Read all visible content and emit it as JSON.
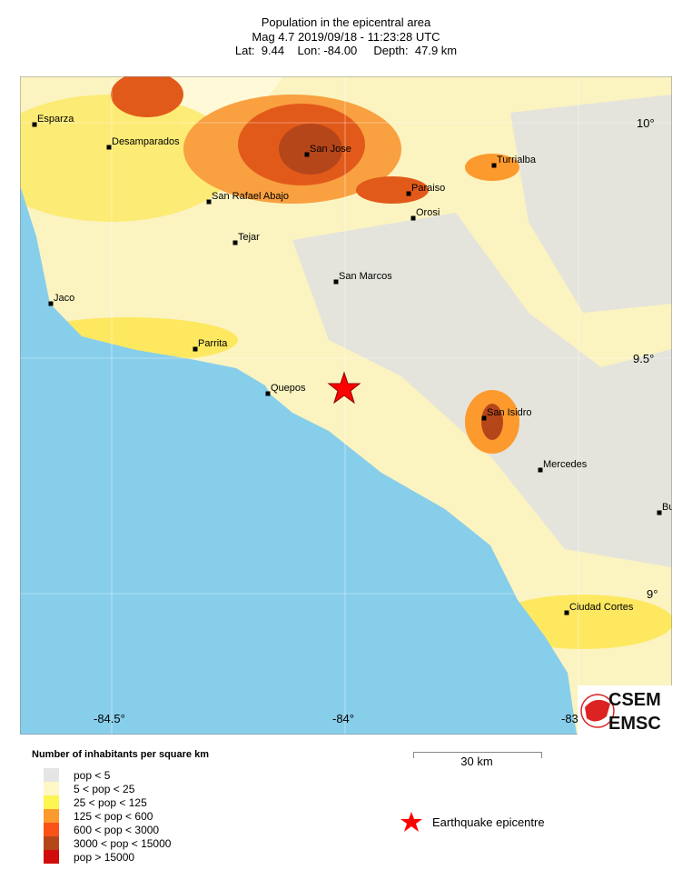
{
  "header": {
    "title": "Population in the epicentral area",
    "line2": "Mag 4.7  2019/09/18 - 11:23:28 UTC",
    "line3": "Lat:  9.44    Lon: -84.00     Depth:  47.9 km"
  },
  "map": {
    "lon_ticks": [
      "-84.5°",
      "-84°",
      "-83"
    ],
    "lat_ticks": [
      "10°",
      "9.5°",
      "9°"
    ],
    "cities": [
      "Esparza",
      "Desamparados",
      "San Jose",
      "Turrialba",
      "Paraiso",
      "Orosi",
      "San Rafael Abajo",
      "Tejar",
      "San Marcos",
      "Jaco",
      "Parrita",
      "Quepos",
      "San Isidro",
      "Mercedes",
      "Bu",
      "Ciudad Cortes"
    ],
    "colors": {
      "ocean": "#87ceeb",
      "epicentre": "#ff0000"
    }
  },
  "legend": {
    "title": "Number of inhabitants per square km",
    "items": [
      {
        "label": "pop < 5",
        "color": "#e5e5e5"
      },
      {
        "label": "5 < pop < 25",
        "color": "#fdf8c6"
      },
      {
        "label": "25 < pop < 125",
        "color": "#fdf550"
      },
      {
        "label": "125 < pop < 600",
        "color": "#fd9a2e"
      },
      {
        "label": "600 < pop < 3000",
        "color": "#f9531a"
      },
      {
        "label": "3000 < pop < 15000",
        "color": "#b5461a"
      },
      {
        "label": "pop > 15000",
        "color": "#d00c0c"
      }
    ]
  },
  "scale": {
    "label": "30 km"
  },
  "epicentre_legend": {
    "label": "Earthquake epicentre"
  },
  "logo": {
    "top": "CSEM",
    "bottom": "EMSC"
  }
}
